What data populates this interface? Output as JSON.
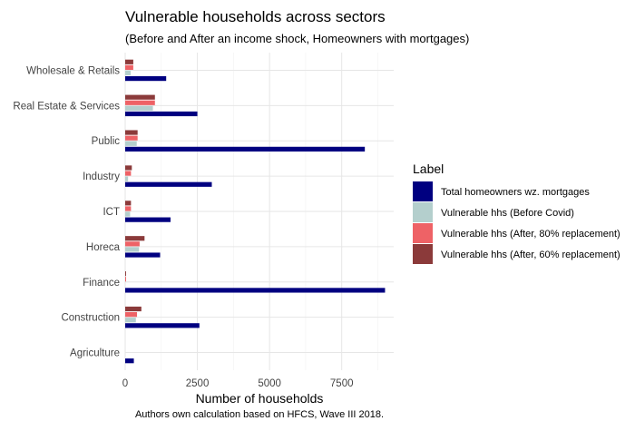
{
  "chart_data": {
    "type": "bar",
    "orientation": "horizontal",
    "title": "Vulnerable households across sectors",
    "subtitle": "(Before and After an income shock, Homeowners with mortgages)",
    "xlabel": "Number of households",
    "ylabel": "",
    "caption": "Authors own calculation based on HFCS, Wave III 2018.",
    "xlim": [
      0,
      9300
    ],
    "xticks": [
      0,
      2500,
      5000,
      7500
    ],
    "xtick_labels": [
      "0",
      "2500",
      "5000",
      "7500"
    ],
    "grid": true,
    "legend_title": "Label",
    "legend_position": "right",
    "categories": [
      "Wholesale & Retails",
      "Real Estate & Services",
      "Public",
      "Industry",
      "ICT",
      "Horeca",
      "Finance",
      "Construction",
      "Agriculture"
    ],
    "series": [
      {
        "name": "Total homeowners wz. mortgages",
        "color": "#000080",
        "values": [
          1420,
          2500,
          8300,
          3000,
          1570,
          1210,
          9000,
          2570,
          300
        ]
      },
      {
        "name": "Vulnerable hhs (Before Covid)",
        "color": "#b4cfcd",
        "values": [
          190,
          960,
          400,
          100,
          170,
          480,
          0,
          370,
          0
        ]
      },
      {
        "name": "Vulnerable hhs (After, 80% replacement)",
        "color": "#ee6266",
        "values": [
          280,
          1030,
          430,
          200,
          200,
          500,
          30,
          410,
          0
        ]
      },
      {
        "name": "Vulnerable hhs (After, 60% replacement)",
        "color": "#8b3a3a",
        "values": [
          280,
          1030,
          430,
          230,
          200,
          670,
          30,
          560,
          0
        ]
      }
    ]
  }
}
